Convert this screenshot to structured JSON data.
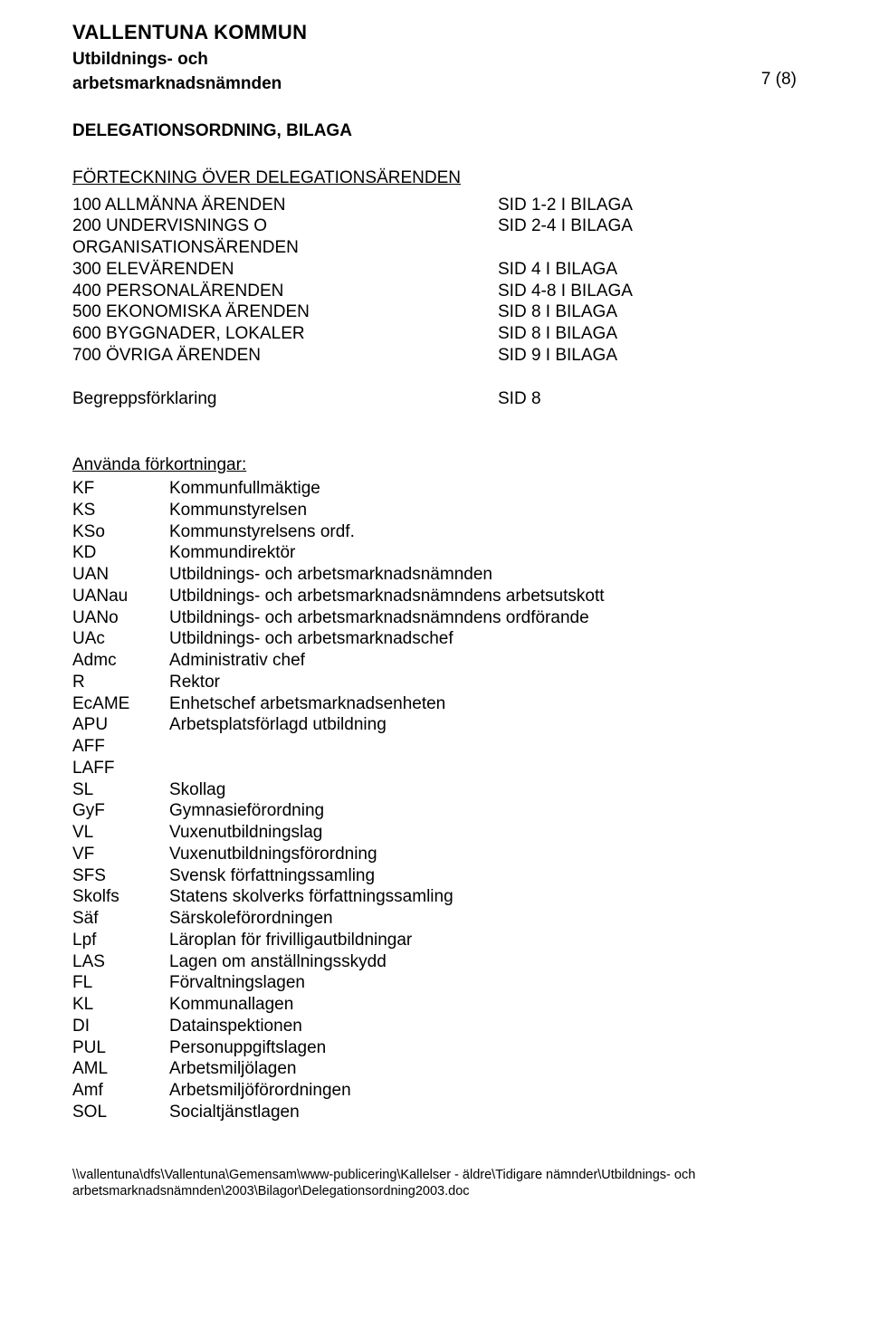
{
  "header": {
    "org": "VALLENTUNA KOMMUN",
    "sub1": "Utbildnings- och",
    "sub2": "arbetsmarknadsnämnden",
    "page_number": "7 (8)"
  },
  "doc_title": "DELEGATIONSORDNING, BILAGA",
  "toc": {
    "title": "FÖRTECKNING ÖVER DELEGATIONSÄRENDEN",
    "rows": [
      {
        "left": "100 ALLMÄNNA ÄRENDEN",
        "right": "SID 1-2 I BILAGA"
      },
      {
        "left": "200 UNDERVISNINGS O ORGANISATIONSÄRENDEN",
        "right": "SID 2-4 I BILAGA"
      },
      {
        "left": "300 ELEVÄRENDEN",
        "right": "SID 4   I BILAGA"
      },
      {
        "left": "400 PERSONALÄRENDEN",
        "right": "SID 4-8 I BILAGA"
      },
      {
        "left": "500 EKONOMISKA ÄRENDEN",
        "right": "SID 8   I BILAGA"
      },
      {
        "left": "600 BYGGNADER, LOKALER",
        "right": "SID 8   I BILAGA"
      },
      {
        "left": "700 ÖVRIGA ÄRENDEN",
        "right": "SID 9   I BILAGA"
      }
    ],
    "extra": {
      "left": "Begreppsförklaring",
      "right": "SID 8"
    }
  },
  "abbr": {
    "title": "Använda förkortningar:",
    "items": [
      {
        "k": "KF",
        "v": "Kommunfullmäktige"
      },
      {
        "k": "KS",
        "v": "Kommunstyrelsen"
      },
      {
        "k": "KSo",
        "v": "Kommunstyrelsens ordf."
      },
      {
        "k": "KD",
        "v": "Kommundirektör"
      },
      {
        "k": "UAN",
        "v": "Utbildnings- och arbetsmarknadsnämnden"
      },
      {
        "k": "UANau",
        "v": "Utbildnings- och arbetsmarknadsnämndens arbetsutskott"
      },
      {
        "k": "UANo",
        "v": "Utbildnings- och arbetsmarknadsnämndens ordförande"
      },
      {
        "k": "UAc",
        "v": "Utbildnings- och arbetsmarknadschef"
      },
      {
        "k": "Admc",
        "v": "Administrativ chef"
      },
      {
        "k": "R",
        "v": "Rektor"
      },
      {
        "k": "EcAME",
        "v": "Enhetschef arbetsmarknadsenheten"
      },
      {
        "k": "APU",
        "v": "Arbetsplatsförlagd utbildning"
      },
      {
        "k": "AFF",
        "v": ""
      },
      {
        "k": "LAFF",
        "v": ""
      },
      {
        "k": "SL",
        "v": "Skollag"
      },
      {
        "k": "GyF",
        "v": "Gymnasieförordning"
      },
      {
        "k": "VL",
        "v": "Vuxenutbildningslag"
      },
      {
        "k": "VF",
        "v": "Vuxenutbildningsförordning"
      },
      {
        "k": "SFS",
        "v": "Svensk författningssamling"
      },
      {
        "k": "Skolfs",
        "v": "Statens skolverks författningssamling"
      },
      {
        "k": "Säf",
        "v": "Särskoleförordningen"
      },
      {
        "k": "Lpf",
        "v": "Läroplan för frivilligautbildningar"
      },
      {
        "k": "LAS",
        "v": "Lagen om anställningsskydd"
      },
      {
        "k": "FL",
        "v": "Förvaltningslagen"
      },
      {
        "k": "KL",
        "v": "Kommunallagen"
      },
      {
        "k": "DI",
        "v": "Datainspektionen"
      },
      {
        "k": "PUL",
        "v": "Personuppgiftslagen"
      },
      {
        "k": "AML",
        "v": "Arbetsmiljölagen"
      },
      {
        "k": "Amf",
        "v": "Arbetsmiljöförordningen"
      },
      {
        "k": "SOL",
        "v": "Socialtjänstlagen"
      }
    ]
  },
  "footer": {
    "line1": "\\\\vallentuna\\dfs\\Vallentuna\\Gemensam\\www-publicering\\Kallelser - äldre\\Tidigare nämnder\\Utbildnings- och",
    "line2": "arbetsmarknadsnämnden\\2003\\Bilagor\\Delegationsordning2003.doc"
  }
}
